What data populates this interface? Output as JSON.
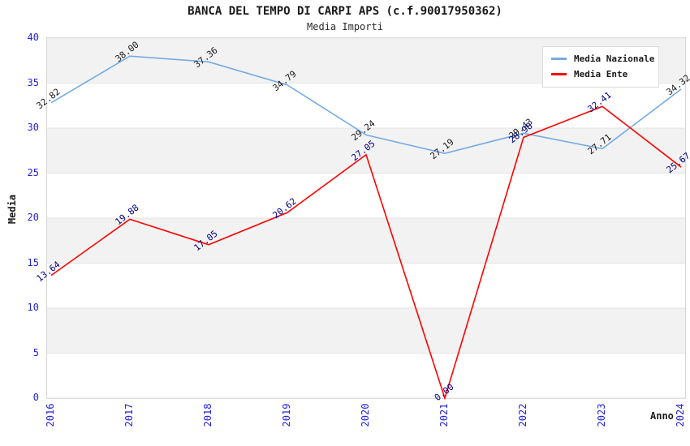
{
  "chart_data": {
    "type": "line",
    "title": "BANCA DEL TEMPO DI CARPI APS (c.f.90017950362)",
    "subtitle": "Media Importi",
    "xlabel": "Anno",
    "ylabel": "Media",
    "categories": [
      "2016",
      "2017",
      "2018",
      "2019",
      "2020",
      "2021",
      "2022",
      "2023",
      "2024"
    ],
    "series": [
      {
        "name": "Media Nazionale",
        "color": "#74abe2",
        "label_color": "#1a1a1a",
        "values": [
          32.82,
          38.0,
          37.36,
          34.79,
          29.24,
          27.19,
          29.43,
          27.71,
          34.32
        ]
      },
      {
        "name": "Media Ente",
        "color": "#ff0000",
        "label_color": "#00008b",
        "values": [
          13.64,
          19.88,
          17.05,
          20.62,
          27.05,
          0.0,
          28.98,
          32.41,
          25.67
        ]
      }
    ],
    "ylim": [
      0,
      40
    ],
    "ytick_step": 5,
    "point_label_format": "2-decimals",
    "legend_position": "top-right",
    "grid": "horizontal-bands"
  },
  "colors": {
    "tick_label": "#2222dd",
    "band": "#f2f2f2",
    "gridline": "#e3e3e3",
    "plot_border": "#d6d6d6",
    "legend_border": "#dddddd",
    "background": "#ffffff"
  }
}
